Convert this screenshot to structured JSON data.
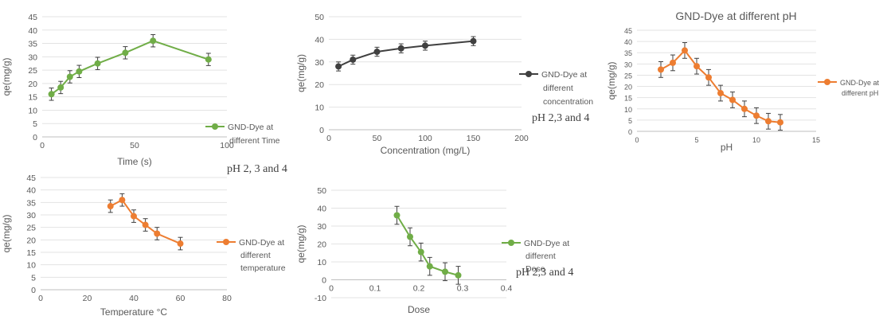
{
  "chart_data": [
    {
      "type": "line",
      "title": "",
      "xlabel": "Time (s)",
      "ylabel": "qe(mg/g)",
      "xlim": [
        0,
        100
      ],
      "ylim": [
        0,
        45
      ],
      "xticks": [
        0,
        50,
        100
      ],
      "yticks": [
        0,
        5,
        10,
        15,
        20,
        25,
        30,
        35,
        40,
        45
      ],
      "color": "#70AD47",
      "legend_position": "right",
      "annotation": "pH 2, 3 and 4",
      "series": [
        {
          "name": "GND-Dye at different Time",
          "x": [
            5,
            10,
            15,
            20,
            30,
            45,
            60,
            90
          ],
          "y": [
            16,
            18.5,
            22.5,
            24.5,
            27.5,
            31.5,
            36,
            29
          ],
          "error": [
            2.3,
            2.3,
            2.3,
            2.3,
            2.3,
            2.3,
            2.3,
            2.3
          ]
        }
      ]
    },
    {
      "type": "line",
      "title": "",
      "xlabel": "Concentration (mg/L)",
      "ylabel": "qe(mg/g)",
      "xlim": [
        0,
        200
      ],
      "ylim": [
        0,
        50
      ],
      "xticks": [
        0,
        50,
        100,
        150,
        200
      ],
      "yticks": [
        0,
        10,
        20,
        30,
        40,
        50
      ],
      "color": "#404040",
      "legend_position": "right",
      "annotation": "pH 2,3 and 4",
      "series": [
        {
          "name": "GND-Dye at different concentration",
          "x": [
            10,
            25,
            50,
            75,
            100,
            150
          ],
          "y": [
            28,
            31,
            34.5,
            36,
            37.2,
            39.2
          ],
          "error": [
            2,
            2,
            2,
            2,
            2,
            2
          ]
        }
      ]
    },
    {
      "type": "line",
      "title": "GND-Dye at different pH",
      "xlabel": "pH",
      "ylabel": "qe(mg/g)",
      "xlim": [
        0,
        15
      ],
      "ylim": [
        0,
        45
      ],
      "xticks": [
        0,
        5,
        10,
        15
      ],
      "yticks": [
        0,
        5,
        10,
        15,
        20,
        25,
        30,
        35,
        40,
        45
      ],
      "color": "#ED7D31",
      "legend_position": "right",
      "annotation": "",
      "series": [
        {
          "name": "GND-Dye at different pH",
          "x": [
            2,
            3,
            4,
            5,
            6,
            7,
            8,
            9,
            10,
            11,
            12
          ],
          "y": [
            27.5,
            30.5,
            36,
            29,
            24,
            17,
            14,
            10,
            7,
            4.5,
            4
          ],
          "error": [
            3.5,
            3.5,
            3.5,
            3.5,
            3.5,
            3.5,
            3.5,
            3.5,
            3.5,
            3.5,
            3.5
          ]
        }
      ]
    },
    {
      "type": "line",
      "title": "",
      "xlabel": "Temperature °C",
      "ylabel": "qe(mg/g)",
      "xlim": [
        0,
        80
      ],
      "ylim": [
        0,
        45
      ],
      "xticks": [
        0,
        20,
        40,
        60,
        80
      ],
      "yticks": [
        0,
        5,
        10,
        15,
        20,
        25,
        30,
        35,
        40,
        45
      ],
      "color": "#ED7D31",
      "legend_position": "right",
      "annotation": "",
      "series": [
        {
          "name": "GND-Dye at different temperature",
          "x": [
            30,
            35,
            40,
            45,
            50,
            60
          ],
          "y": [
            33.5,
            36,
            29.5,
            26,
            22.5,
            18.5
          ],
          "error": [
            2.5,
            2.5,
            2.5,
            2.5,
            2.5,
            2.5
          ]
        }
      ]
    },
    {
      "type": "line",
      "title": "",
      "xlabel": "Dose",
      "ylabel": "qe(mg/g)",
      "xlim": [
        0,
        0.4
      ],
      "ylim": [
        -10,
        50
      ],
      "xticks": [
        0,
        0.1,
        0.2,
        0.3,
        0.4
      ],
      "yticks": [
        -10,
        0,
        10,
        20,
        30,
        40,
        50
      ],
      "color": "#70AD47",
      "legend_position": "right",
      "annotation": "pH 2,3 and 4",
      "series": [
        {
          "name": "GND-Dye at different Dose",
          "x": [
            0.15,
            0.18,
            0.205,
            0.225,
            0.26,
            0.29
          ],
          "y": [
            36,
            24,
            15.5,
            7.5,
            4.5,
            2.5
          ],
          "error": [
            5,
            5,
            5,
            5,
            5,
            5
          ]
        }
      ]
    }
  ]
}
